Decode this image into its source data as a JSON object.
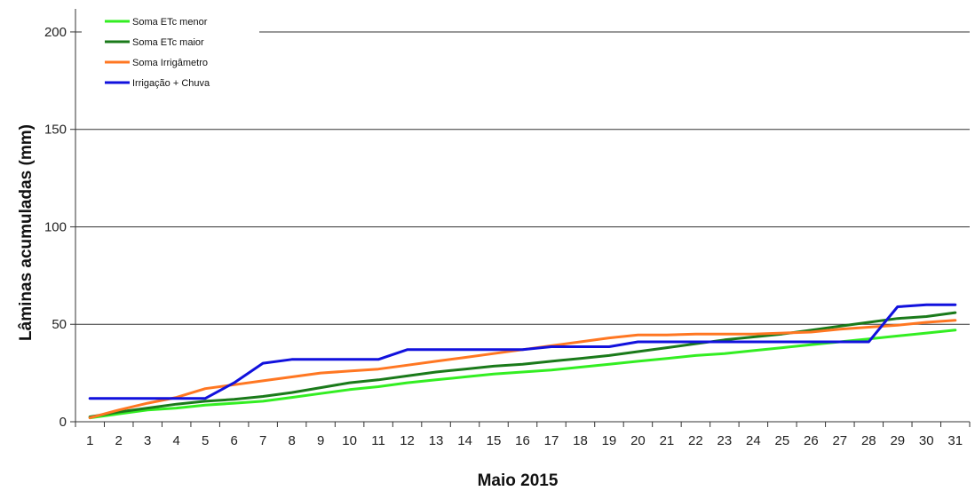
{
  "chart_data": {
    "type": "line",
    "title": "",
    "xlabel": "Maio 2015",
    "ylabel": "Lâminas acumuladas (mm)",
    "ylim": [
      0,
      210
    ],
    "yticks": [
      0,
      50,
      100,
      150,
      200
    ],
    "grid": "horizontal",
    "legend_position": "top-left",
    "categories": [
      "1",
      "2",
      "3",
      "4",
      "5",
      "6",
      "7",
      "8",
      "9",
      "10",
      "11",
      "12",
      "13",
      "14",
      "15",
      "16",
      "17",
      "18",
      "19",
      "20",
      "21",
      "22",
      "23",
      "24",
      "25",
      "26",
      "27",
      "28",
      "29",
      "30",
      "31"
    ],
    "series": [
      {
        "name": "Soma ETc menor",
        "color": "#33ee22",
        "values": [
          2,
          4,
          6,
          7,
          8.5,
          9.5,
          10.5,
          12.5,
          14.5,
          16.5,
          18,
          20,
          21.5,
          23,
          24.5,
          25.5,
          26.5,
          28,
          29.5,
          31,
          32.5,
          34,
          35,
          36.5,
          38,
          39.5,
          41,
          42.5,
          44,
          45.5,
          47
        ]
      },
      {
        "name": "Soma ETc maior",
        "color": "#1a7a1a",
        "values": [
          2.5,
          5,
          7,
          9,
          10.5,
          11.5,
          13,
          15,
          17.5,
          20,
          21.5,
          23.5,
          25.5,
          27,
          28.5,
          29.5,
          31,
          32.5,
          34,
          36,
          38,
          40,
          42,
          43.5,
          45,
          47,
          49,
          51,
          53,
          54,
          56
        ]
      },
      {
        "name": "Soma Irrigâmetro",
        "color": "#ff7722",
        "values": [
          2,
          6,
          9.5,
          12.5,
          17,
          19,
          21,
          23,
          25,
          26,
          27,
          29,
          31,
          33,
          35,
          37,
          39,
          41,
          43,
          44.5,
          44.5,
          45,
          45,
          45,
          45.5,
          46,
          47.5,
          48.5,
          49.5,
          51,
          52
        ]
      },
      {
        "name": "Irrigação + Chuva",
        "color": "#1111dd",
        "values": [
          12,
          12,
          12,
          12,
          12,
          20,
          30,
          32,
          32,
          32,
          32,
          37,
          37,
          37,
          37,
          37,
          38.5,
          38.5,
          38.5,
          41,
          41,
          41,
          41,
          41,
          41,
          41,
          41,
          41,
          59,
          60,
          60
        ]
      }
    ]
  }
}
